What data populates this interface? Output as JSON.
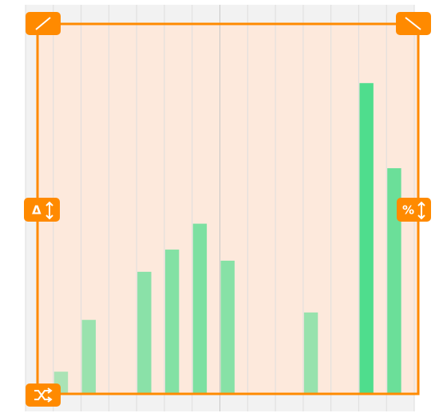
{
  "chart_data": {
    "type": "bar",
    "categories": [
      null,
      null,
      null,
      null,
      null,
      null,
      null,
      null,
      null,
      null,
      null,
      null,
      null,
      null
    ],
    "values": [
      0,
      6,
      20,
      0,
      33,
      39,
      46,
      36,
      0,
      0,
      22,
      0,
      84,
      61
    ],
    "color": "#3ddc84",
    "ylim": [
      0,
      100
    ],
    "grid": true
  },
  "handles": {
    "left": "Δ",
    "right": "%"
  }
}
